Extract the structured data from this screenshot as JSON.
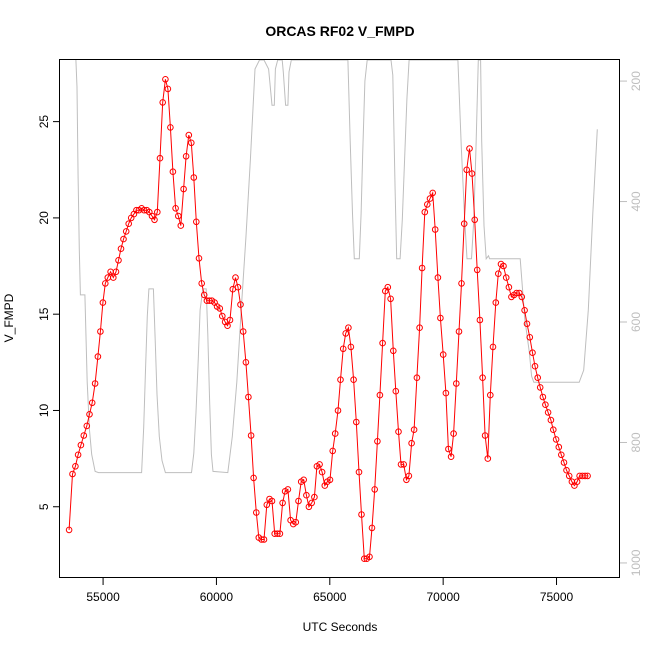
{
  "chart_data": {
    "type": "line",
    "title": "ORCAS RF02 V_FMPD",
    "xlabel": "UTC Seconds",
    "ylabel": "V_FMPD",
    "xlim": [
      53100,
      77800
    ],
    "ylim": [
      1.3,
      28.2
    ],
    "x_ticks": [
      55000,
      60000,
      65000,
      70000,
      75000
    ],
    "x_tick_labels": [
      "55000",
      "60000",
      "65000",
      "70000",
      "75000"
    ],
    "y_ticks": [
      5,
      10,
      15,
      20,
      25
    ],
    "y_tick_labels": [
      "5",
      "10",
      "15",
      "20",
      "25"
    ],
    "right_axis": {
      "ylim": [
        1025,
        165
      ],
      "ticks": [
        200,
        400,
        600,
        800,
        1000
      ],
      "tick_labels": [
        "200",
        "400",
        "600",
        "800",
        "1000"
      ],
      "color": "#bebebe"
    },
    "grid": false,
    "series": [
      {
        "color": "#ff0000",
        "marker": "open-circle",
        "points": [
          [
            53500,
            3.8
          ],
          [
            53650,
            6.7
          ],
          [
            53780,
            7.1
          ],
          [
            53900,
            7.7
          ],
          [
            54020,
            8.2
          ],
          [
            54150,
            8.7
          ],
          [
            54280,
            9.2
          ],
          [
            54400,
            9.8
          ],
          [
            54520,
            10.4
          ],
          [
            54650,
            11.4
          ],
          [
            54770,
            12.8
          ],
          [
            54880,
            14.1
          ],
          [
            54990,
            15.6
          ],
          [
            55100,
            16.6
          ],
          [
            55210,
            16.9
          ],
          [
            55330,
            17.2
          ],
          [
            55450,
            16.9
          ],
          [
            55570,
            17.2
          ],
          [
            55680,
            17.8
          ],
          [
            55790,
            18.4
          ],
          [
            55900,
            18.9
          ],
          [
            56020,
            19.3
          ],
          [
            56130,
            19.7
          ],
          [
            56240,
            20.0
          ],
          [
            56360,
            20.2
          ],
          [
            56470,
            20.4
          ],
          [
            56580,
            20.4
          ],
          [
            56700,
            20.5
          ],
          [
            56810,
            20.4
          ],
          [
            56930,
            20.4
          ],
          [
            57040,
            20.3
          ],
          [
            57160,
            20.1
          ],
          [
            57270,
            19.9
          ],
          [
            57390,
            20.3
          ],
          [
            57510,
            23.1
          ],
          [
            57630,
            26.0
          ],
          [
            57750,
            27.2
          ],
          [
            57860,
            26.7
          ],
          [
            57970,
            24.7
          ],
          [
            58080,
            22.4
          ],
          [
            58200,
            20.5
          ],
          [
            58320,
            20.1
          ],
          [
            58430,
            19.6
          ],
          [
            58550,
            21.5
          ],
          [
            58660,
            23.2
          ],
          [
            58780,
            24.3
          ],
          [
            58890,
            23.9
          ],
          [
            59000,
            22.1
          ],
          [
            59110,
            19.8
          ],
          [
            59230,
            17.9
          ],
          [
            59350,
            16.6
          ],
          [
            59460,
            16.0
          ],
          [
            59580,
            15.7
          ],
          [
            59690,
            15.7
          ],
          [
            59800,
            15.7
          ],
          [
            59920,
            15.6
          ],
          [
            60030,
            15.4
          ],
          [
            60150,
            15.3
          ],
          [
            60260,
            14.9
          ],
          [
            60380,
            14.6
          ],
          [
            60490,
            14.4
          ],
          [
            60600,
            14.7
          ],
          [
            60720,
            16.3
          ],
          [
            60840,
            16.9
          ],
          [
            60950,
            16.4
          ],
          [
            61060,
            15.5
          ],
          [
            61180,
            14.1
          ],
          [
            61300,
            12.5
          ],
          [
            61410,
            10.7
          ],
          [
            61530,
            8.7
          ],
          [
            61640,
            6.5
          ],
          [
            61760,
            4.7
          ],
          [
            61870,
            3.4
          ],
          [
            61990,
            3.3
          ],
          [
            62100,
            3.3
          ],
          [
            62220,
            5.1
          ],
          [
            62340,
            5.4
          ],
          [
            62450,
            5.3
          ],
          [
            62570,
            3.6
          ],
          [
            62690,
            3.6
          ],
          [
            62800,
            3.6
          ],
          [
            62920,
            5.2
          ],
          [
            63030,
            5.8
          ],
          [
            63150,
            5.9
          ],
          [
            63270,
            4.3
          ],
          [
            63390,
            4.1
          ],
          [
            63500,
            4.2
          ],
          [
            63620,
            5.3
          ],
          [
            63740,
            6.3
          ],
          [
            63850,
            6.4
          ],
          [
            63970,
            5.6
          ],
          [
            64080,
            5.0
          ],
          [
            64200,
            5.2
          ],
          [
            64320,
            5.5
          ],
          [
            64430,
            7.1
          ],
          [
            64550,
            7.2
          ],
          [
            64660,
            6.8
          ],
          [
            64780,
            6.1
          ],
          [
            64890,
            6.3
          ],
          [
            65010,
            6.4
          ],
          [
            65130,
            7.9
          ],
          [
            65240,
            8.8
          ],
          [
            65360,
            10.0
          ],
          [
            65470,
            11.6
          ],
          [
            65590,
            13.2
          ],
          [
            65700,
            14.0
          ],
          [
            65820,
            14.3
          ],
          [
            65930,
            13.3
          ],
          [
            66050,
            11.6
          ],
          [
            66170,
            9.4
          ],
          [
            66290,
            6.8
          ],
          [
            66400,
            4.6
          ],
          [
            66520,
            2.3
          ],
          [
            66630,
            2.3
          ],
          [
            66750,
            2.4
          ],
          [
            66860,
            3.9
          ],
          [
            66980,
            5.9
          ],
          [
            67100,
            8.4
          ],
          [
            67210,
            10.8
          ],
          [
            67330,
            13.5
          ],
          [
            67450,
            16.2
          ],
          [
            67560,
            16.4
          ],
          [
            67680,
            15.8
          ],
          [
            67800,
            13.1
          ],
          [
            67910,
            11.0
          ],
          [
            68030,
            8.9
          ],
          [
            68140,
            7.2
          ],
          [
            68260,
            7.2
          ],
          [
            68380,
            6.4
          ],
          [
            68490,
            6.6
          ],
          [
            68610,
            8.3
          ],
          [
            68720,
            9.0
          ],
          [
            68840,
            11.7
          ],
          [
            68960,
            14.3
          ],
          [
            69070,
            17.4
          ],
          [
            69190,
            20.3
          ],
          [
            69300,
            20.7
          ],
          [
            69420,
            21.0
          ],
          [
            69540,
            21.3
          ],
          [
            69650,
            19.4
          ],
          [
            69770,
            16.9
          ],
          [
            69880,
            14.8
          ],
          [
            70000,
            12.9
          ],
          [
            70120,
            10.9
          ],
          [
            70230,
            8.0
          ],
          [
            70350,
            7.6
          ],
          [
            70460,
            8.8
          ],
          [
            70580,
            11.4
          ],
          [
            70700,
            14.1
          ],
          [
            70810,
            16.6
          ],
          [
            70930,
            19.7
          ],
          [
            71040,
            22.5
          ],
          [
            71160,
            23.6
          ],
          [
            71270,
            22.3
          ],
          [
            71390,
            19.9
          ],
          [
            71500,
            17.3
          ],
          [
            71620,
            14.7
          ],
          [
            71740,
            11.7
          ],
          [
            71850,
            8.7
          ],
          [
            71970,
            7.5
          ],
          [
            72080,
            10.8
          ],
          [
            72200,
            13.3
          ],
          [
            72320,
            15.6
          ],
          [
            72430,
            17.1
          ],
          [
            72550,
            17.6
          ],
          [
            72660,
            17.5
          ],
          [
            72780,
            16.9
          ],
          [
            72900,
            16.4
          ],
          [
            73010,
            15.9
          ],
          [
            73130,
            16.0
          ],
          [
            73240,
            16.1
          ],
          [
            73360,
            16.1
          ],
          [
            73470,
            15.9
          ],
          [
            73590,
            15.2
          ],
          [
            73700,
            14.5
          ],
          [
            73820,
            13.8
          ],
          [
            73940,
            13.0
          ],
          [
            74050,
            12.3
          ],
          [
            74170,
            11.7
          ],
          [
            74280,
            11.2
          ],
          [
            74400,
            10.7
          ],
          [
            74510,
            10.3
          ],
          [
            74630,
            9.9
          ],
          [
            74750,
            9.5
          ],
          [
            74860,
            9.0
          ],
          [
            74980,
            8.5
          ],
          [
            75100,
            8.1
          ],
          [
            75210,
            7.7
          ],
          [
            75330,
            7.3
          ],
          [
            75440,
            6.9
          ],
          [
            75560,
            6.6
          ],
          [
            75680,
            6.3
          ],
          [
            75790,
            6.1
          ],
          [
            75910,
            6.3
          ],
          [
            76020,
            6.6
          ],
          [
            76140,
            6.6
          ],
          [
            76260,
            6.6
          ],
          [
            76370,
            6.6
          ]
        ]
      }
    ],
    "pressure_line": {
      "color": "#bebebe",
      "points": [
        [
          53800,
          0
        ],
        [
          53850,
          210
        ],
        [
          53900,
          360
        ],
        [
          53950,
          480
        ],
        [
          54000,
          555
        ],
        [
          54200,
          555
        ],
        [
          54300,
          700
        ],
        [
          54400,
          780
        ],
        [
          54500,
          820
        ],
        [
          54650,
          848
        ],
        [
          54800,
          850
        ],
        [
          56700,
          850
        ],
        [
          56790,
          775
        ],
        [
          56870,
          680
        ],
        [
          56950,
          590
        ],
        [
          57020,
          545
        ],
        [
          57220,
          545
        ],
        [
          57300,
          630
        ],
        [
          57380,
          720
        ],
        [
          57480,
          790
        ],
        [
          57600,
          830
        ],
        [
          57750,
          850
        ],
        [
          58900,
          850
        ],
        [
          59000,
          818
        ],
        [
          59100,
          750
        ],
        [
          59200,
          660
        ],
        [
          59280,
          580
        ],
        [
          59400,
          545
        ],
        [
          59550,
          545
        ],
        [
          59620,
          620
        ],
        [
          59700,
          730
        ],
        [
          59780,
          820
        ],
        [
          59850,
          848
        ],
        [
          60500,
          850
        ],
        [
          60700,
          790
        ],
        [
          60900,
          700
        ],
        [
          61100,
          575
        ],
        [
          61300,
          460
        ],
        [
          61500,
          330
        ],
        [
          61700,
          180
        ],
        [
          61900,
          0
        ],
        [
          62100,
          0
        ],
        [
          62300,
          180
        ],
        [
          62450,
          240
        ],
        [
          62550,
          240
        ],
        [
          62600,
          180
        ],
        [
          62700,
          0
        ],
        [
          62900,
          0
        ],
        [
          62950,
          185
        ],
        [
          63050,
          240
        ],
        [
          63150,
          240
        ],
        [
          63200,
          185
        ],
        [
          63300,
          0
        ],
        [
          65800,
          0
        ],
        [
          65900,
          300
        ],
        [
          66000,
          420
        ],
        [
          66080,
          495
        ],
        [
          66300,
          495
        ],
        [
          66380,
          420
        ],
        [
          66450,
          320
        ],
        [
          66550,
          200
        ],
        [
          66650,
          100
        ],
        [
          66700,
          0
        ],
        [
          67700,
          0
        ],
        [
          67780,
          190
        ],
        [
          67880,
          380
        ],
        [
          67950,
          495
        ],
        [
          68100,
          495
        ],
        [
          68200,
          430
        ],
        [
          68300,
          330
        ],
        [
          68400,
          230
        ],
        [
          68500,
          120
        ],
        [
          68550,
          0
        ],
        [
          70650,
          0
        ],
        [
          70800,
          310
        ],
        [
          70950,
          430
        ],
        [
          71050,
          495
        ],
        [
          71250,
          495
        ],
        [
          71350,
          430
        ],
        [
          71450,
          310
        ],
        [
          71550,
          120
        ],
        [
          71600,
          0
        ],
        [
          71650,
          0
        ],
        [
          71700,
          300
        ],
        [
          71800,
          440
        ],
        [
          71900,
          495
        ],
        [
          72000,
          490
        ],
        [
          72050,
          495
        ],
        [
          73400,
          495
        ],
        [
          73600,
          595
        ],
        [
          73800,
          650
        ],
        [
          73900,
          690
        ],
        [
          74000,
          700
        ],
        [
          75000,
          700
        ],
        [
          76000,
          700
        ],
        [
          76200,
          680
        ],
        [
          76400,
          580
        ],
        [
          76600,
          420
        ],
        [
          76800,
          280
        ]
      ]
    }
  }
}
